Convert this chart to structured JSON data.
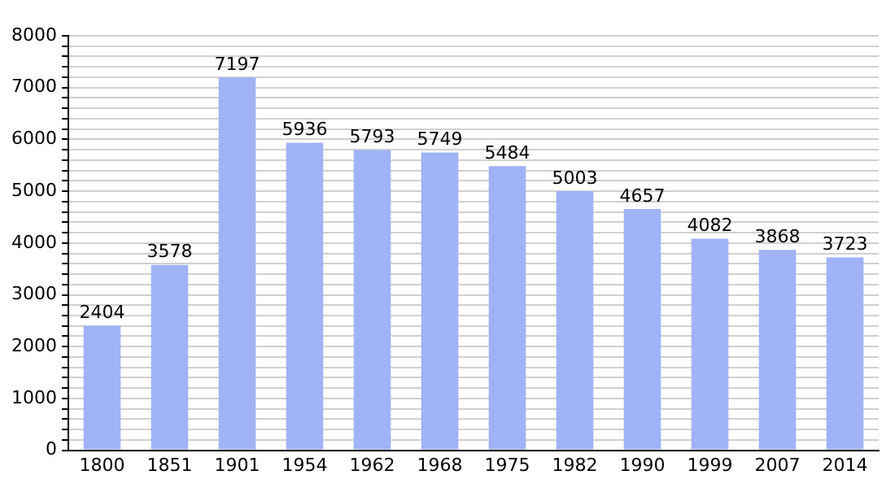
{
  "chart_data": {
    "type": "bar",
    "categories": [
      "1800",
      "1851",
      "1901",
      "1954",
      "1962",
      "1968",
      "1975",
      "1982",
      "1990",
      "1999",
      "2007",
      "2014"
    ],
    "values": [
      2404,
      3578,
      7197,
      5936,
      5793,
      5749,
      5484,
      5003,
      4657,
      4082,
      3868,
      3723
    ],
    "color": "#a0b3f7",
    "ylim": [
      0,
      8000
    ],
    "yticks": [
      0,
      {
        "value": 200,
        "label": null
      },
      {
        "value": 400,
        "label": null
      },
      {
        "value": 600,
        "label": null
      },
      {
        "value": 800,
        "label": null
      },
      1000,
      {
        "value": 1200,
        "label": null
      },
      {
        "value": 1400,
        "label": null
      },
      {
        "value": 1600,
        "label": null
      },
      {
        "value": 1800,
        "label": null
      },
      2000,
      {
        "value": 2200,
        "label": null
      },
      {
        "value": 2400,
        "label": null
      },
      {
        "value": 2600,
        "label": null
      },
      {
        "value": 2800,
        "label": null
      },
      3000,
      {
        "value": 3200,
        "label": null
      },
      {
        "value": 3400,
        "label": null
      },
      {
        "value": 3600,
        "label": null
      },
      {
        "value": 3800,
        "label": null
      },
      4000,
      {
        "value": 4200,
        "label": null
      },
      {
        "value": 4400,
        "label": null
      },
      {
        "value": 4600,
        "label": null
      },
      {
        "value": 4800,
        "label": null
      },
      5000,
      {
        "value": 5200,
        "label": null
      },
      {
        "value": 5400,
        "label": null
      },
      {
        "value": 5600,
        "label": null
      },
      {
        "value": 5800,
        "label": null
      },
      6000,
      {
        "value": 6200,
        "label": null
      },
      {
        "value": 6400,
        "label": null
      },
      {
        "value": 6600,
        "label": null
      },
      {
        "value": 6800,
        "label": null
      },
      7000,
      {
        "value": 7200,
        "label": null
      },
      {
        "value": 7400,
        "label": null
      },
      {
        "value": 7600,
        "label": null
      },
      {
        "value": 7800,
        "label": null
      },
      8000
    ],
    "grid": "y",
    "data_labels": true
  }
}
